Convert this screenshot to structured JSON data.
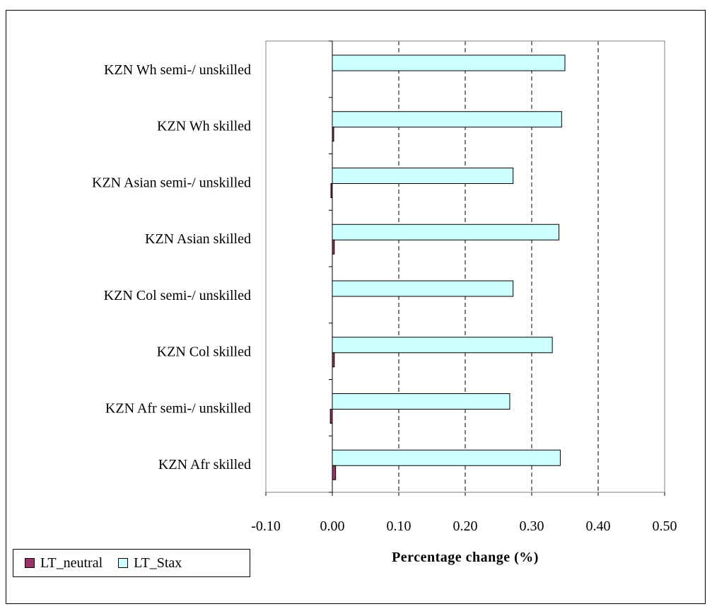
{
  "chart_data": {
    "type": "bar",
    "orientation": "horizontal",
    "categories": [
      "KZN Wh semi-/ unskilled",
      "KZN Wh  skilled",
      "KZN Asian semi-/ unskilled",
      "KZN Asian skilled",
      "KZN Col semi-/ unskilled",
      "KZN Col skilled",
      "KZN Afr semi-/ unskilled",
      "KZN Afr skilled"
    ],
    "series": [
      {
        "name": "LT_neutral",
        "color": "#993366",
        "values": [
          0.0,
          0.002,
          -0.002,
          0.003,
          0.0,
          0.003,
          -0.003,
          0.005
        ]
      },
      {
        "name": "LT_Stax",
        "color": "#CCFFFF",
        "values": [
          0.35,
          0.345,
          0.272,
          0.341,
          0.272,
          0.331,
          0.267,
          0.343
        ]
      }
    ],
    "xlabel": "Percentage change (%)",
    "xlim": [
      -0.1,
      0.5
    ],
    "xticks": [
      "-0.10",
      "0.00",
      "0.10",
      "0.20",
      "0.30",
      "0.40",
      "0.50"
    ],
    "grid": "vertical dashed",
    "legend_position": "bottom-left"
  }
}
